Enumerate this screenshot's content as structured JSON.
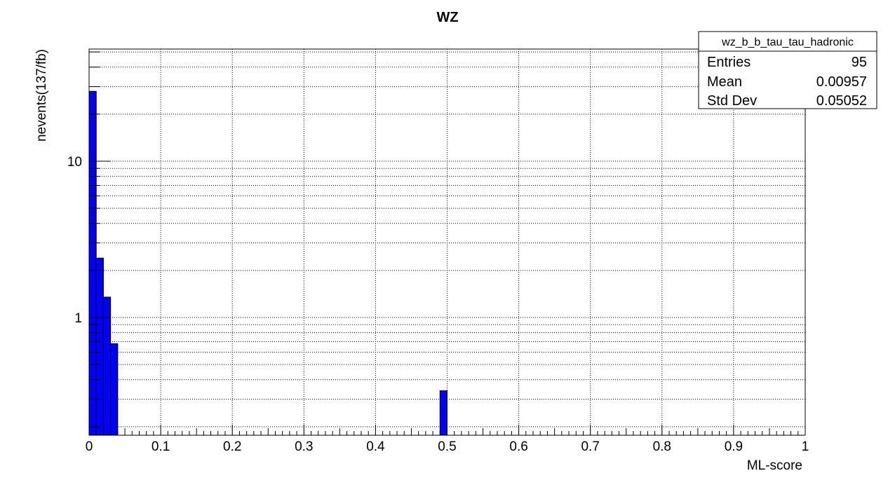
{
  "chart_data": {
    "type": "bar",
    "title": "WZ",
    "xlabel": "ML-score",
    "ylabel": "nevents(137/fb)",
    "xlim": [
      0,
      1
    ],
    "ylim": [
      0.17,
      55
    ],
    "yscale": "log",
    "grid": true,
    "bar_color": "#0000ff",
    "bins": [
      {
        "x0": 0.0,
        "x1": 0.01,
        "value": 28.0
      },
      {
        "x0": 0.01,
        "x1": 0.02,
        "value": 2.4
      },
      {
        "x0": 0.02,
        "x1": 0.03,
        "value": 1.35
      },
      {
        "x0": 0.03,
        "x1": 0.04,
        "value": 0.68
      },
      {
        "x0": 0.49,
        "x1": 0.5,
        "value": 0.34
      }
    ],
    "x_ticks": [
      "0",
      "0.1",
      "0.2",
      "0.3",
      "0.4",
      "0.5",
      "0.6",
      "0.7",
      "0.8",
      "0.9",
      "1"
    ],
    "y_ticks": [
      "1",
      "10"
    ]
  },
  "stats_box": {
    "title": "wz_b_b_tau_tau_hadronic",
    "rows": [
      {
        "label": "Entries",
        "value": "95"
      },
      {
        "label": "Mean",
        "value": "0.00957"
      },
      {
        "label": "Std Dev",
        "value": "0.05052"
      }
    ]
  }
}
